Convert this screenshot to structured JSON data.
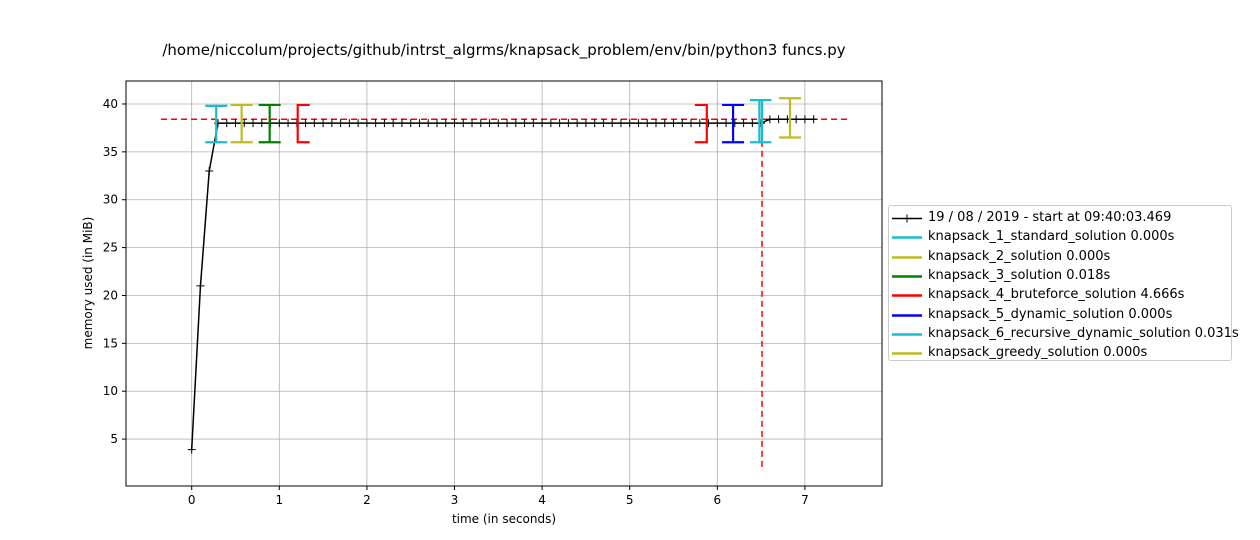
{
  "chart_data": {
    "type": "line",
    "title": "/home/niccolum/projects/github/intrst_algrms/knapsack_problem/env/bin/python3 funcs.py",
    "xlabel": "time (in seconds)",
    "ylabel": "memory used (in MiB)",
    "xlim": [
      -0.75,
      7.88
    ],
    "ylim": [
      0.1,
      42.4
    ],
    "xticks": [
      0,
      1,
      2,
      3,
      4,
      5,
      6,
      7
    ],
    "yticks": [
      5,
      10,
      15,
      20,
      25,
      30,
      35,
      40
    ],
    "grid": true,
    "legend_position": "right, outside plot",
    "max_memory_line": {
      "y": 38.4,
      "x": [
        -0.35,
        7.5
      ],
      "color": "#ff0000"
    },
    "max_memory_time_line": {
      "x": 6.51,
      "y": [
        2.1,
        38.4
      ],
      "color": "#ff0000"
    },
    "series": [
      {
        "name": "19 / 08 / 2019 - start at 09:40:03.469",
        "color": "#000000",
        "x": [
          0.0,
          0.1,
          0.2,
          0.3,
          0.4,
          0.5,
          0.6,
          0.7,
          0.8,
          0.9,
          1.0,
          1.1,
          1.2,
          1.3,
          1.4,
          1.5,
          1.6,
          1.7,
          1.8,
          1.9,
          2.0,
          2.1,
          2.2,
          2.3,
          2.4,
          2.5,
          2.6,
          2.7,
          2.8,
          2.9,
          3.0,
          3.1,
          3.2,
          3.3,
          3.4,
          3.5,
          3.6,
          3.7,
          3.8,
          3.9,
          4.0,
          4.1,
          4.2,
          4.3,
          4.4,
          4.5,
          4.6,
          4.7,
          4.8,
          4.9,
          5.0,
          5.1,
          5.2,
          5.3,
          5.4,
          5.5,
          5.6,
          5.7,
          5.8,
          5.9,
          6.0,
          6.1,
          6.2,
          6.3,
          6.4,
          6.5,
          6.6,
          6.7,
          6.8,
          6.9,
          7.0,
          7.1
        ],
        "y": [
          3.9,
          21.0,
          33.0,
          38.0,
          38.0,
          38.0,
          38.0,
          38.0,
          38.0,
          38.0,
          38.0,
          38.0,
          38.0,
          38.0,
          38.0,
          38.0,
          38.0,
          38.0,
          38.0,
          38.0,
          38.0,
          38.0,
          38.0,
          38.0,
          38.0,
          38.0,
          38.0,
          38.0,
          38.0,
          38.0,
          38.0,
          38.0,
          38.0,
          38.0,
          38.0,
          38.0,
          38.0,
          38.0,
          38.0,
          38.0,
          38.0,
          38.0,
          38.0,
          38.0,
          38.0,
          38.0,
          38.0,
          38.0,
          38.0,
          38.0,
          38.0,
          38.0,
          38.0,
          38.0,
          38.0,
          38.0,
          38.0,
          38.0,
          38.0,
          38.0,
          38.0,
          38.0,
          38.0,
          38.0,
          38.0,
          38.0,
          38.4,
          38.4,
          38.4,
          38.4,
          38.4,
          38.4
        ]
      }
    ],
    "function_markers": [
      {
        "name": "knapsack_1_standard_solution 0.000s",
        "color": "#17becf",
        "start": 0.28,
        "end": 0.28,
        "ymin": 36.0,
        "ymax": 39.8
      },
      {
        "name": "knapsack_2_solution 0.000s",
        "color": "#bcbd22",
        "start": 0.57,
        "end": 0.57,
        "ymin": 36.0,
        "ymax": 39.9
      },
      {
        "name": "knapsack_3_solution 0.018s",
        "color": "#008000",
        "start": 0.89,
        "end": 0.89,
        "ymin": 36.0,
        "ymax": 39.9
      },
      {
        "name": "knapsack_4_bruteforce_solution 4.666s",
        "color": "#ff0000",
        "start": 1.21,
        "end": 5.88,
        "ymin": 36.0,
        "ymax": 39.9
      },
      {
        "name": "knapsack_5_dynamic_solution 0.000s",
        "color": "#0000ff",
        "start": 6.18,
        "end": 6.18,
        "ymin": 36.0,
        "ymax": 39.9
      },
      {
        "name": "knapsack_6_recursive_dynamic_solution 0.031s",
        "color": "#17becf",
        "start": 6.48,
        "end": 6.51,
        "ymin": 36.0,
        "ymax": 40.4
      },
      {
        "name": "knapsack_greedy_solution 0.000s",
        "color": "#bcbd22",
        "start": 6.83,
        "end": 6.83,
        "ymin": 36.5,
        "ymax": 40.6
      }
    ]
  }
}
